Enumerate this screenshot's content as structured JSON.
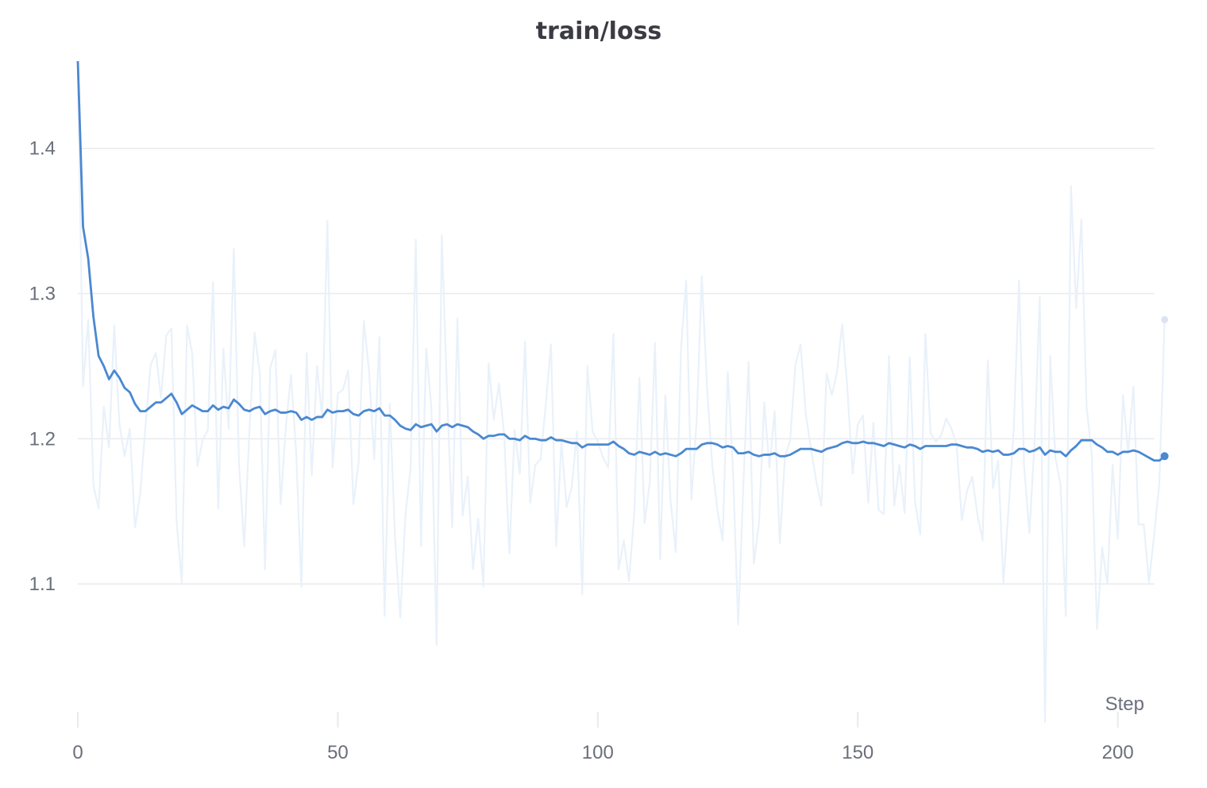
{
  "chart_data": {
    "type": "line",
    "title": "train/loss",
    "xlabel": "Step",
    "ylabel": "",
    "xlim": [
      0,
      207
    ],
    "ylim": [
      1.0,
      1.46
    ],
    "x_ticks": [
      0,
      50,
      100,
      150,
      200
    ],
    "y_ticks": [
      1.1,
      1.2,
      1.3,
      1.4
    ],
    "y_tick_labels": [
      "1.1",
      "1.2",
      "1.3",
      "1.4"
    ],
    "x_tick_labels": [
      "0",
      "50",
      "100",
      "150",
      "200"
    ],
    "grid": "horizontal",
    "legend": "none",
    "colors": {
      "smoothed": "#4a88d1",
      "raw": "#e9f1fa",
      "grid": "#e8eaee",
      "tick_text": "#6b6f7b",
      "title_text": "#3b3b44"
    },
    "series": [
      {
        "role": "raw",
        "values": [
          1.46,
          1.236,
          1.282,
          1.168,
          1.152,
          1.222,
          1.194,
          1.278,
          1.21,
          1.188,
          1.207,
          1.139,
          1.162,
          1.208,
          1.251,
          1.259,
          1.228,
          1.271,
          1.276,
          1.143,
          1.101,
          1.278,
          1.259,
          1.181,
          1.199,
          1.206,
          1.308,
          1.152,
          1.262,
          1.207,
          1.331,
          1.183,
          1.126,
          1.205,
          1.273,
          1.245,
          1.11,
          1.249,
          1.261,
          1.155,
          1.208,
          1.244,
          1.19,
          1.098,
          1.259,
          1.175,
          1.25,
          1.214,
          1.35,
          1.18,
          1.231,
          1.234,
          1.247,
          1.155,
          1.184,
          1.281,
          1.247,
          1.186,
          1.27,
          1.078,
          1.224,
          1.132,
          1.077,
          1.147,
          1.18,
          1.337,
          1.126,
          1.262,
          1.221,
          1.058,
          1.34,
          1.232,
          1.139,
          1.283,
          1.147,
          1.174,
          1.11,
          1.145,
          1.098,
          1.252,
          1.213,
          1.238,
          1.202,
          1.121,
          1.206,
          1.176,
          1.267,
          1.156,
          1.182,
          1.186,
          1.224,
          1.265,
          1.126,
          1.198,
          1.153,
          1.167,
          1.205,
          1.093,
          1.25,
          1.205,
          1.198,
          1.187,
          1.18,
          1.272,
          1.11,
          1.13,
          1.102,
          1.148,
          1.242,
          1.142,
          1.17,
          1.266,
          1.117,
          1.23,
          1.157,
          1.122,
          1.262,
          1.309,
          1.158,
          1.212,
          1.312,
          1.236,
          1.182,
          1.151,
          1.13,
          1.246,
          1.178,
          1.072,
          1.169,
          1.253,
          1.114,
          1.142,
          1.225,
          1.18,
          1.219,
          1.128,
          1.188,
          1.199,
          1.251,
          1.265,
          1.217,
          1.193,
          1.171,
          1.154,
          1.245,
          1.23,
          1.246,
          1.279,
          1.234,
          1.176,
          1.21,
          1.216,
          1.156,
          1.211,
          1.151,
          1.148,
          1.257,
          1.154,
          1.182,
          1.149,
          1.256,
          1.157,
          1.134,
          1.272,
          1.204,
          1.198,
          1.202,
          1.214,
          1.207,
          1.196,
          1.144,
          1.164,
          1.174,
          1.148,
          1.13,
          1.254,
          1.166,
          1.185,
          1.101,
          1.152,
          1.207,
          1.309,
          1.18,
          1.135,
          1.198,
          1.298,
          1.005,
          1.257,
          1.187,
          1.168,
          1.078,
          1.374,
          1.29,
          1.351,
          1.222,
          1.189,
          1.069,
          1.125,
          1.1,
          1.182,
          1.131,
          1.23,
          1.19,
          1.236,
          1.141,
          1.141,
          1.101,
          1.134,
          1.17,
          1.282
        ]
      },
      {
        "role": "smoothed",
        "values": [
          1.46,
          1.346,
          1.324,
          1.284,
          1.257,
          1.25,
          1.241,
          1.247,
          1.242,
          1.235,
          1.232,
          1.224,
          1.219,
          1.219,
          1.222,
          1.225,
          1.225,
          1.228,
          1.231,
          1.225,
          1.217,
          1.22,
          1.223,
          1.221,
          1.219,
          1.219,
          1.223,
          1.22,
          1.222,
          1.221,
          1.227,
          1.224,
          1.22,
          1.219,
          1.221,
          1.222,
          1.217,
          1.219,
          1.22,
          1.218,
          1.218,
          1.219,
          1.218,
          1.213,
          1.215,
          1.213,
          1.215,
          1.215,
          1.22,
          1.218,
          1.219,
          1.219,
          1.22,
          1.217,
          1.216,
          1.219,
          1.22,
          1.219,
          1.221,
          1.216,
          1.216,
          1.213,
          1.209,
          1.207,
          1.206,
          1.21,
          1.208,
          1.209,
          1.21,
          1.205,
          1.209,
          1.21,
          1.208,
          1.21,
          1.209,
          1.208,
          1.205,
          1.203,
          1.2,
          1.202,
          1.202,
          1.203,
          1.203,
          1.2,
          1.2,
          1.199,
          1.202,
          1.2,
          1.2,
          1.199,
          1.199,
          1.201,
          1.199,
          1.199,
          1.198,
          1.197,
          1.197,
          1.194,
          1.196,
          1.196,
          1.196,
          1.196,
          1.196,
          1.198,
          1.195,
          1.193,
          1.19,
          1.189,
          1.191,
          1.19,
          1.189,
          1.191,
          1.189,
          1.19,
          1.189,
          1.188,
          1.19,
          1.193,
          1.193,
          1.193,
          1.196,
          1.197,
          1.197,
          1.196,
          1.194,
          1.195,
          1.194,
          1.19,
          1.19,
          1.191,
          1.189,
          1.188,
          1.189,
          1.189,
          1.19,
          1.188,
          1.188,
          1.189,
          1.191,
          1.193,
          1.193,
          1.193,
          1.192,
          1.191,
          1.193,
          1.194,
          1.195,
          1.197,
          1.198,
          1.197,
          1.197,
          1.198,
          1.197,
          1.197,
          1.196,
          1.195,
          1.197,
          1.196,
          1.195,
          1.194,
          1.196,
          1.195,
          1.193,
          1.195,
          1.195,
          1.195,
          1.195,
          1.195,
          1.196,
          1.196,
          1.195,
          1.194,
          1.194,
          1.193,
          1.191,
          1.192,
          1.191,
          1.192,
          1.189,
          1.189,
          1.19,
          1.193,
          1.193,
          1.191,
          1.192,
          1.194,
          1.189,
          1.192,
          1.191,
          1.191,
          1.188,
          1.192,
          1.195,
          1.199,
          1.199,
          1.199,
          1.196,
          1.194,
          1.191,
          1.191,
          1.189,
          1.191,
          1.191,
          1.192,
          1.191,
          1.189,
          1.187,
          1.185,
          1.185,
          1.188
        ]
      }
    ]
  }
}
